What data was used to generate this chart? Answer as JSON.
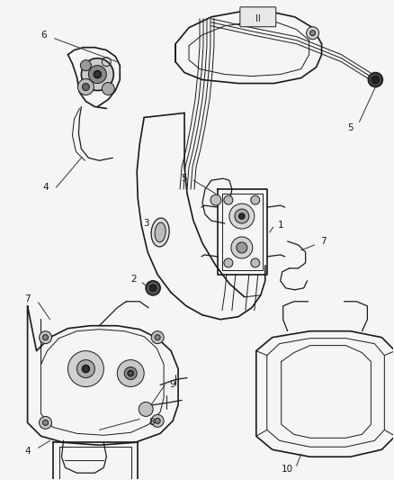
{
  "bg_color": "#f5f5f5",
  "line_color": "#1a1a1a",
  "label_color": "#1a1a1a",
  "figsize": [
    4.38,
    5.33
  ],
  "dpi": 100,
  "lw_main": 1.2,
  "lw_thin": 0.7,
  "lw_med": 0.9,
  "label_fs": 7.5
}
